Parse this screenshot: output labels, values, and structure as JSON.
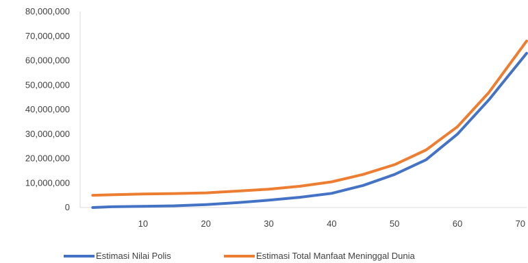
{
  "chart_data": {
    "type": "line",
    "title": "",
    "xlabel": "",
    "ylabel": "",
    "xlim": [
      0,
      71
    ],
    "ylim": [
      0,
      80000000
    ],
    "x_ticks": [
      10,
      20,
      30,
      40,
      50,
      60,
      70
    ],
    "x_tick_labels": [
      "10",
      "20",
      "30",
      "40",
      "50",
      "60",
      "70"
    ],
    "y_ticks": [
      0,
      10000000,
      20000000,
      30000000,
      40000000,
      50000000,
      60000000,
      70000000,
      80000000
    ],
    "y_tick_labels": [
      "0",
      "10,000,000",
      "20,000,000",
      "30,000,000",
      "40,000,000",
      "50,000,000",
      "60,000,000",
      "70,000,000",
      "80,000,000"
    ],
    "grid": false,
    "legend_position": "bottom",
    "series": [
      {
        "name": "Estimasi Nilai Polis",
        "color": "#4472C4",
        "x": [
          2,
          5,
          10,
          15,
          20,
          25,
          30,
          35,
          40,
          45,
          50,
          55,
          60,
          65,
          71
        ],
        "y": [
          0,
          300000,
          500000,
          700000,
          1200000,
          2000000,
          3000000,
          4200000,
          5800000,
          9000000,
          13500000,
          19500000,
          30000000,
          44000000,
          63000000
        ]
      },
      {
        "name": "Estimasi Total Manfaat Meninggal Dunia",
        "color": "#ED7D31",
        "x": [
          2,
          5,
          10,
          15,
          20,
          25,
          30,
          35,
          40,
          45,
          50,
          55,
          60,
          65,
          71
        ],
        "y": [
          5000000,
          5200000,
          5500000,
          5700000,
          6000000,
          6700000,
          7500000,
          8700000,
          10500000,
          13500000,
          17500000,
          23500000,
          33000000,
          47000000,
          68000000
        ]
      }
    ]
  }
}
